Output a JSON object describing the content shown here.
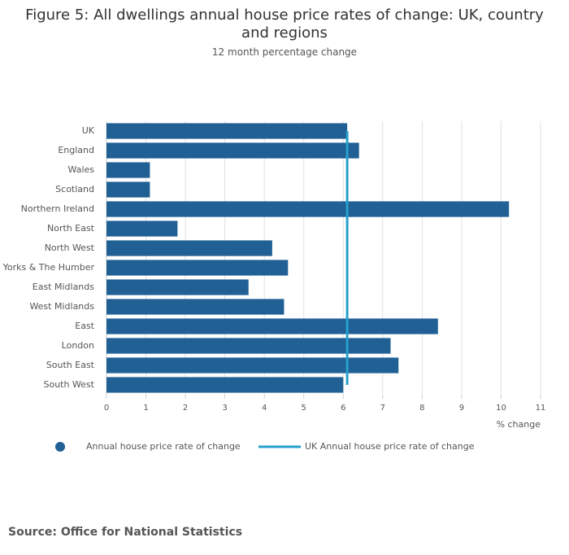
{
  "chart_data": {
    "type": "bar",
    "orientation": "horizontal",
    "title": "Figure 5: All dwellings annual house price rates of change: UK, country and regions",
    "subtitle": "12 month percentage change",
    "xlabel": "% change",
    "source": "Source: Office for National Statistics",
    "categories": [
      "UK",
      "England",
      "Wales",
      "Scotland",
      "Northern Ireland",
      "North East",
      "North West",
      "Yorks & The Humber",
      "East Midlands",
      "West Midlands",
      "East",
      "London",
      "South East",
      "South West"
    ],
    "series": [
      {
        "name": "Annual house price rate of change",
        "color": "#206095",
        "type": "bar",
        "values": [
          6.1,
          6.4,
          1.1,
          1.1,
          10.2,
          1.8,
          4.2,
          4.6,
          3.6,
          4.5,
          8.4,
          7.2,
          7.4,
          6.0
        ]
      },
      {
        "name": "UK Annual house price rate of change",
        "color": "#27a0cc",
        "type": "line",
        "values": [
          6.1,
          6.1,
          6.1,
          6.1,
          6.1,
          6.1,
          6.1,
          6.1,
          6.1,
          6.1,
          6.1,
          6.1,
          6.1,
          6.1
        ]
      }
    ],
    "xlim": [
      0,
      11
    ],
    "xticks": [
      0,
      1,
      2,
      3,
      4,
      5,
      6,
      7,
      8,
      9,
      10,
      11
    ],
    "grid": true
  }
}
